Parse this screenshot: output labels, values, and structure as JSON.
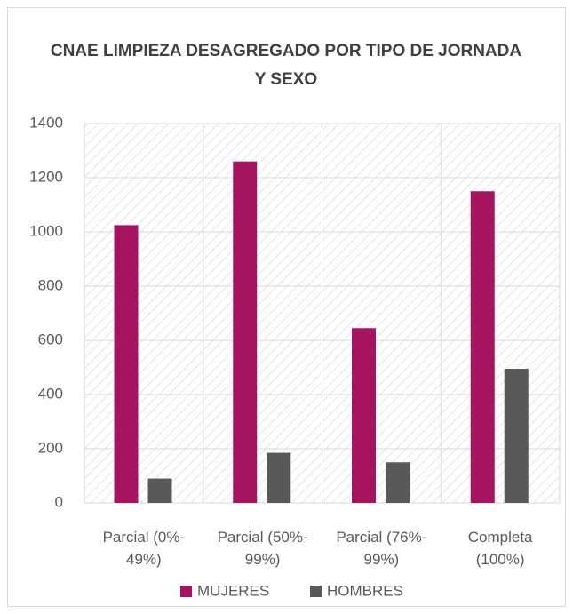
{
  "chart_data": {
    "type": "bar",
    "title": "CNAE LIMPIEZA DESAGREGADO POR TIPO DE JORNADA Y SEXO",
    "categories": [
      "Parcial (0%-49%)",
      "Parcial (50%-99%)",
      "Parcial (76%-99%)",
      "Completa (100%)"
    ],
    "series": [
      {
        "name": "MUJERES",
        "color": "#a6135f",
        "values": [
          1025,
          1260,
          645,
          1150
        ]
      },
      {
        "name": "HOMBRES",
        "color": "#595959",
        "values": [
          90,
          185,
          150,
          495
        ]
      }
    ],
    "ylim": [
      0,
      1400
    ],
    "yticks": [
      0,
      200,
      400,
      600,
      800,
      1000,
      1200,
      1400
    ],
    "grid": true,
    "legend": "bottom"
  }
}
